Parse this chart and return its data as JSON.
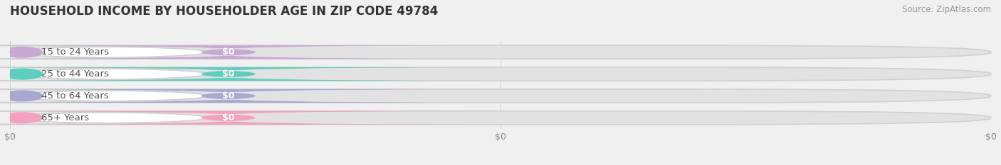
{
  "title": "HOUSEHOLD INCOME BY HOUSEHOLDER AGE IN ZIP CODE 49784",
  "source": "Source: ZipAtlas.com",
  "categories": [
    "15 to 24 Years",
    "25 to 44 Years",
    "45 to 64 Years",
    "65+ Years"
  ],
  "values": [
    0,
    0,
    0,
    0
  ],
  "bar_colors": [
    "#c9a8d4",
    "#5ecfbe",
    "#a8a8d4",
    "#f4a0be"
  ],
  "background_color": "#f0f0f0",
  "bar_bg_color": "#e2e2e2",
  "white_pill_color": "#ffffff",
  "title_fontsize": 12,
  "source_fontsize": 8.5,
  "label_fontsize": 9.5,
  "value_fontsize": 9
}
